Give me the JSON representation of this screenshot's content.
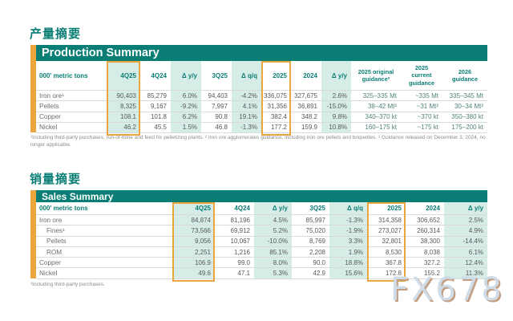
{
  "page": {
    "production_section_title_zh": "产量摘要",
    "sales_section_title_zh": "销量摘要",
    "watermark": "FX678"
  },
  "theme": {
    "teal": "#0a7e75",
    "mint": "#d6ece7",
    "gold": "#eba73d",
    "banner_text": "#ffffff"
  },
  "production": {
    "banner": "Production Summary",
    "unit_header": "000' metric tons",
    "columns": [
      "4Q25",
      "4Q24",
      "Δ y/y",
      "3Q25",
      "Δ q/q",
      "2025",
      "2024",
      "Δ y/y",
      "2025 original guidance³",
      "2025 current guidance",
      "2026 guidance"
    ],
    "highlighted_columns": [
      "4Q25",
      "2025"
    ],
    "rows": [
      {
        "label": "Iron ore¹",
        "values": [
          "90,403",
          "85,279",
          "6.0%",
          "94,403",
          "-4.2%",
          "336,075",
          "327,675",
          "2.6%",
          "325–335 Mt",
          "~335 Mt",
          "335–345 Mt"
        ]
      },
      {
        "label": "Pellets",
        "values": [
          "8,325",
          "9,167",
          "-9.2%",
          "7,997",
          "4.1%",
          "31,356",
          "36,891",
          "-15.0%",
          "38–42 Mt²",
          "~31 Mt²",
          "30–34 Mt²"
        ]
      },
      {
        "label": "Copper",
        "values": [
          "108.1",
          "101.8",
          "6.2%",
          "90.8",
          "19.1%",
          "382.4",
          "348.2",
          "9.8%",
          "340–370 kt",
          "~370 kt",
          "350–380 kt"
        ]
      },
      {
        "label": "Nickel",
        "values": [
          "46.2",
          "45.5",
          "1.5%",
          "46.8",
          "-1.3%",
          "177.2",
          "159.9",
          "10.8%",
          "160–175 kt",
          "~175 kt",
          "175–200 kt"
        ]
      }
    ],
    "footnote": "¹Including third-party purchases, run-of-mine and feed for pelletizing plants. ² Iron ore agglomerates guidance, including iron ore pellets and briquettes. ³ Guidance released on December 3, 2024, no longer applicable."
  },
  "sales": {
    "banner": "Sales Summary",
    "unit_header": "000' metric tons",
    "columns": [
      "4Q25",
      "4Q24",
      "Δ y/y",
      "3Q25",
      "Δ q/q",
      "2025",
      "2024",
      "Δ y/y"
    ],
    "highlighted_columns": [
      "4Q25",
      "2025"
    ],
    "rows": [
      {
        "label": "Iron ore",
        "indent": false,
        "values": [
          "84,874",
          "81,196",
          "4.5%",
          "85,997",
          "-1.3%",
          "314,358",
          "306,652",
          "2.5%"
        ]
      },
      {
        "label": "Fines¹",
        "indent": true,
        "values": [
          "73,566",
          "69,912",
          "5.2%",
          "75,020",
          "-1.9%",
          "273,027",
          "260,314",
          "4.9%"
        ]
      },
      {
        "label": "Pellets",
        "indent": true,
        "values": [
          "9,056",
          "10,067",
          "-10.0%",
          "8,769",
          "3.3%",
          "32,801",
          "38,300",
          "-14.4%"
        ]
      },
      {
        "label": "ROM",
        "indent": true,
        "values": [
          "2,251",
          "1,216",
          "85.1%",
          "2,208",
          "1.9%",
          "8,530",
          "8,038",
          "6.1%"
        ]
      },
      {
        "label": "Copper",
        "indent": false,
        "values": [
          "106.9",
          "99.0",
          "8.0%",
          "90.0",
          "18.8%",
          "367.8",
          "327.2",
          "12.4%"
        ]
      },
      {
        "label": "Nickel",
        "indent": false,
        "values": [
          "49.6",
          "47.1",
          "5.3%",
          "42.9",
          "15.6%",
          "172.8",
          "155.2",
          "11.3%"
        ]
      }
    ],
    "footnote": "¹Including third-party purchases."
  }
}
